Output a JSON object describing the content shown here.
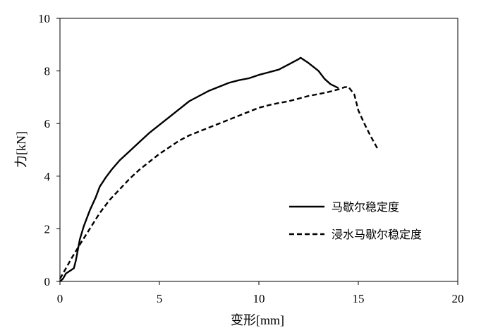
{
  "chart_data": {
    "type": "line",
    "xlabel": "变形[mm]",
    "ylabel": "力[kN]",
    "xlim": [
      0,
      20
    ],
    "ylim": [
      0,
      10
    ],
    "x_ticks": [
      "0",
      "5",
      "10",
      "15",
      "20"
    ],
    "y_ticks": [
      "0",
      "2",
      "4",
      "6",
      "8",
      "10"
    ],
    "grid": false,
    "legend_position": "right",
    "series": [
      {
        "name": "马歇尔稳定度",
        "style": "solid",
        "color": "#000000",
        "x": [
          0.0,
          0.15,
          0.3,
          0.5,
          0.7,
          0.8,
          0.9,
          1.0,
          1.2,
          1.5,
          1.8,
          2.0,
          2.3,
          2.6,
          3.0,
          3.5,
          4.0,
          4.5,
          5.0,
          5.5,
          6.0,
          6.5,
          7.0,
          7.5,
          8.0,
          8.5,
          9.0,
          9.5,
          10.0,
          10.5,
          11.0,
          11.5,
          12.0,
          12.1,
          12.5,
          13.0,
          13.3,
          13.6,
          14.0
        ],
        "y": [
          0.0,
          0.1,
          0.3,
          0.4,
          0.5,
          0.8,
          1.2,
          1.6,
          2.1,
          2.7,
          3.2,
          3.6,
          3.95,
          4.25,
          4.6,
          4.95,
          5.3,
          5.65,
          5.95,
          6.25,
          6.55,
          6.85,
          7.05,
          7.25,
          7.4,
          7.55,
          7.65,
          7.72,
          7.85,
          7.95,
          8.05,
          8.25,
          8.45,
          8.5,
          8.3,
          8.0,
          7.7,
          7.5,
          7.35
        ]
      },
      {
        "name": "浸水马歇尔稳定度",
        "style": "dashed",
        "color": "#000000",
        "x": [
          0.0,
          0.3,
          0.6,
          1.0,
          1.5,
          2.0,
          2.5,
          3.0,
          3.5,
          4.0,
          4.5,
          5.0,
          5.5,
          6.0,
          6.5,
          7.0,
          7.5,
          8.0,
          8.5,
          9.0,
          9.5,
          10.0,
          10.5,
          11.0,
          11.5,
          12.0,
          12.5,
          13.0,
          13.5,
          14.0,
          14.3,
          14.5,
          14.8,
          15.0,
          15.3,
          15.6,
          16.0
        ],
        "y": [
          0.1,
          0.5,
          0.9,
          1.4,
          2.0,
          2.6,
          3.1,
          3.5,
          3.9,
          4.25,
          4.55,
          4.85,
          5.1,
          5.35,
          5.55,
          5.7,
          5.85,
          6.0,
          6.15,
          6.3,
          6.45,
          6.6,
          6.7,
          6.78,
          6.85,
          6.95,
          7.05,
          7.12,
          7.2,
          7.3,
          7.38,
          7.4,
          7.1,
          6.5,
          6.0,
          5.55,
          5.0
        ]
      }
    ]
  }
}
